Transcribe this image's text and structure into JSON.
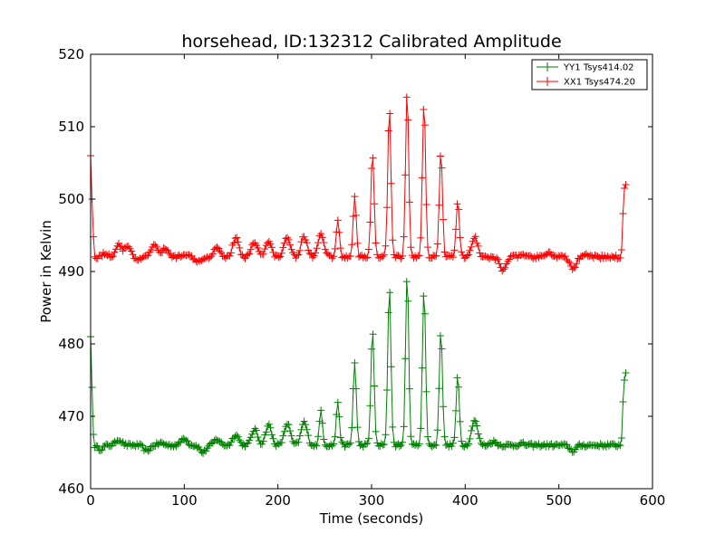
{
  "chart_data": {
    "type": "line",
    "title": "horsehead, ID:132312 Calibrated Amplitude",
    "xlabel": "Time (seconds)",
    "ylabel": "Power in Kelvin",
    "xlim": [
      0,
      600
    ],
    "ylim": [
      460,
      520
    ],
    "xticks": [
      0,
      100,
      200,
      300,
      400,
      500,
      600
    ],
    "yticks": [
      460,
      470,
      480,
      490,
      500,
      510,
      520
    ],
    "xtick_labels": [
      "0",
      "100",
      "200",
      "300",
      "400",
      "500",
      "600"
    ],
    "ytick_labels": [
      "460",
      "470",
      "480",
      "490",
      "500",
      "510",
      "520"
    ],
    "grid": false,
    "legend_position": "top-right",
    "marker": "plus",
    "sample_step": 1.5,
    "series": [
      {
        "name": "YY1 Tsys414.02",
        "color": "#008000",
        "x_start": 0,
        "x_end": 572,
        "baseline": 466.0,
        "edges": [
          [
            0,
            481
          ],
          [
            1.5,
            474
          ],
          [
            3,
            467.5
          ],
          [
            567,
            467
          ],
          [
            568.5,
            472
          ],
          [
            570,
            475
          ],
          [
            571.5,
            476
          ]
        ],
        "peaks": [
          [
            10,
            465.5
          ],
          [
            30,
            466.8
          ],
          [
            45,
            466.0
          ],
          [
            60,
            465.2
          ],
          [
            75,
            466.3
          ],
          [
            100,
            467.0
          ],
          [
            120,
            465.0
          ],
          [
            135,
            466.8
          ],
          [
            155,
            467.5
          ],
          [
            175,
            468.2
          ],
          [
            190,
            468.8
          ],
          [
            210,
            469.0
          ],
          [
            228,
            469.2
          ],
          [
            246,
            470.8
          ],
          [
            264,
            472.0
          ],
          [
            282,
            477.5
          ],
          [
            301,
            482.0
          ],
          [
            319,
            488.0
          ],
          [
            338,
            489.5
          ],
          [
            356,
            487.5
          ],
          [
            374,
            482.0
          ],
          [
            392,
            475.5
          ],
          [
            410,
            469.5
          ],
          [
            430,
            466.5
          ],
          [
            460,
            466.2
          ],
          [
            490,
            466.0
          ],
          [
            515,
            465.2
          ],
          [
            540,
            466.0
          ]
        ]
      },
      {
        "name": "XX1 Tsys474.20",
        "color": "#ff0000",
        "x_start": 0,
        "x_end": 572,
        "baseline": 492.0,
        "edges": [
          [
            0,
            506
          ],
          [
            1.5,
            500
          ],
          [
            3,
            494.8
          ],
          [
            567,
            493
          ],
          [
            568.5,
            498
          ],
          [
            570,
            501.5
          ],
          [
            571.5,
            502
          ]
        ],
        "peaks": [
          [
            15,
            492.5
          ],
          [
            30,
            493.8
          ],
          [
            40,
            493.6
          ],
          [
            50,
            491.5
          ],
          [
            68,
            493.8
          ],
          [
            80,
            493.2
          ],
          [
            100,
            492.5
          ],
          [
            115,
            491.5
          ],
          [
            135,
            493.5
          ],
          [
            155,
            494.6
          ],
          [
            175,
            494.2
          ],
          [
            190,
            494.1
          ],
          [
            210,
            494.9
          ],
          [
            228,
            494.9
          ],
          [
            246,
            495.0
          ],
          [
            264,
            497.0
          ],
          [
            282,
            500.5
          ],
          [
            301,
            506.5
          ],
          [
            319,
            512.8
          ],
          [
            338,
            514.8
          ],
          [
            356,
            513.5
          ],
          [
            374,
            506.8
          ],
          [
            392,
            499.8
          ],
          [
            410,
            494.8
          ],
          [
            430,
            491.8
          ],
          [
            440,
            490.3
          ],
          [
            460,
            492.2
          ],
          [
            490,
            492.6
          ],
          [
            515,
            490.3
          ],
          [
            530,
            492.2
          ]
        ]
      }
    ]
  }
}
